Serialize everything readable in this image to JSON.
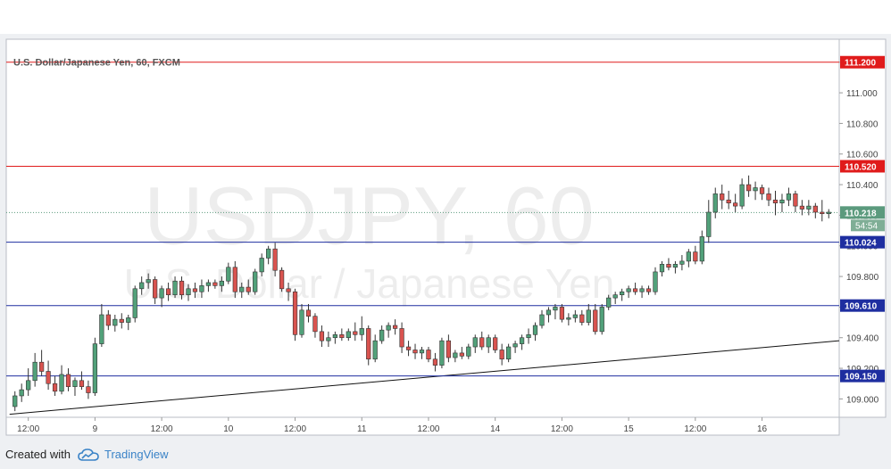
{
  "chart_data": {
    "type": "candlestick",
    "title": "U.S. Dollar/Japanese Yen, 60, FXCM",
    "watermark_symbol": "USDJPY, 60",
    "watermark_name": "U.S. Dollar / Japanese Yen",
    "ylim": [
      108.88,
      111.35
    ],
    "y_ticks": [
      109.0,
      109.2,
      109.4,
      109.6,
      109.8,
      110.0,
      110.2,
      110.4,
      110.6,
      110.8,
      111.0,
      111.2
    ],
    "x_ticks": [
      "12:00",
      "9",
      "12:00",
      "10",
      "12:00",
      "11",
      "12:00",
      "14",
      "12:00",
      "15",
      "12:00",
      "16"
    ],
    "horizontal_levels": [
      {
        "label": "111.200",
        "value": 111.2,
        "color": "#e01b1b",
        "kind": "resistance"
      },
      {
        "label": "110.520",
        "value": 110.52,
        "color": "#e01b1b",
        "kind": "resistance"
      },
      {
        "label": "110.024",
        "value": 110.024,
        "color": "#1e2ea0",
        "kind": "support"
      },
      {
        "label": "109.610",
        "value": 109.61,
        "color": "#1e2ea0",
        "kind": "support"
      },
      {
        "label": "109.150",
        "value": 109.15,
        "color": "#1e2ea0",
        "kind": "support"
      }
    ],
    "current_price": {
      "label": "110.218",
      "value": 110.218,
      "color": "#5b9a7d"
    },
    "countdown": "54:54",
    "trendline": {
      "from": [
        0,
        108.9
      ],
      "to": [
        124,
        109.38
      ],
      "color": "#111111"
    },
    "candles": [
      [
        108.95,
        109.05,
        108.92,
        109.02
      ],
      [
        109.02,
        109.1,
        108.98,
        109.06
      ],
      [
        109.06,
        109.2,
        109.02,
        109.12
      ],
      [
        109.12,
        109.3,
        109.08,
        109.24
      ],
      [
        109.24,
        109.32,
        109.15,
        109.18
      ],
      [
        109.18,
        109.25,
        109.06,
        109.1
      ],
      [
        109.1,
        109.15,
        109.02,
        109.05
      ],
      [
        109.05,
        109.22,
        109.03,
        109.16
      ],
      [
        109.16,
        109.2,
        109.05,
        109.08
      ],
      [
        109.08,
        109.14,
        109.02,
        109.12
      ],
      [
        109.12,
        109.18,
        109.06,
        109.08
      ],
      [
        109.08,
        109.12,
        109.0,
        109.04
      ],
      [
        109.04,
        109.4,
        109.02,
        109.36
      ],
      [
        109.36,
        109.62,
        109.34,
        109.55
      ],
      [
        109.55,
        109.58,
        109.45,
        109.48
      ],
      [
        109.48,
        109.55,
        109.44,
        109.52
      ],
      [
        109.52,
        109.56,
        109.46,
        109.5
      ],
      [
        109.5,
        109.55,
        109.45,
        109.53
      ],
      [
        109.53,
        109.74,
        109.5,
        109.72
      ],
      [
        109.72,
        109.8,
        109.68,
        109.76
      ],
      [
        109.76,
        109.82,
        109.72,
        109.78
      ],
      [
        109.78,
        109.8,
        109.62,
        109.66
      ],
      [
        109.66,
        109.74,
        109.6,
        109.72
      ],
      [
        109.72,
        109.76,
        109.64,
        109.68
      ],
      [
        109.68,
        109.8,
        109.66,
        109.77
      ],
      [
        109.77,
        109.8,
        109.65,
        109.68
      ],
      [
        109.68,
        109.75,
        109.64,
        109.72
      ],
      [
        109.72,
        109.76,
        109.66,
        109.7
      ],
      [
        109.7,
        109.78,
        109.66,
        109.74
      ],
      [
        109.74,
        109.78,
        109.7,
        109.76
      ],
      [
        109.76,
        109.78,
        109.72,
        109.74
      ],
      [
        109.74,
        109.8,
        109.7,
        109.77
      ],
      [
        109.77,
        109.89,
        109.75,
        109.86
      ],
      [
        109.86,
        109.9,
        109.66,
        109.7
      ],
      [
        109.7,
        109.76,
        109.66,
        109.73
      ],
      [
        109.73,
        109.78,
        109.68,
        109.7
      ],
      [
        109.7,
        109.85,
        109.68,
        109.83
      ],
      [
        109.83,
        109.95,
        109.8,
        109.92
      ],
      [
        109.92,
        110.0,
        109.88,
        109.98
      ],
      [
        109.98,
        110.02,
        109.8,
        109.84
      ],
      [
        109.84,
        109.86,
        109.7,
        109.72
      ],
      [
        109.72,
        109.76,
        109.64,
        109.7
      ],
      [
        109.7,
        109.72,
        109.38,
        109.42
      ],
      [
        109.42,
        109.62,
        109.4,
        109.58
      ],
      [
        109.58,
        109.62,
        109.5,
        109.54
      ],
      [
        109.54,
        109.56,
        109.4,
        109.44
      ],
      [
        109.44,
        109.48,
        109.34,
        109.38
      ],
      [
        109.38,
        109.44,
        109.34,
        109.4
      ],
      [
        109.4,
        109.44,
        109.36,
        109.42
      ],
      [
        109.42,
        109.46,
        109.38,
        109.4
      ],
      [
        109.4,
        109.46,
        109.38,
        109.44
      ],
      [
        109.44,
        109.5,
        109.38,
        109.42
      ],
      [
        109.42,
        109.54,
        109.38,
        109.46
      ],
      [
        109.46,
        109.48,
        109.22,
        109.26
      ],
      [
        109.26,
        109.42,
        109.24,
        109.38
      ],
      [
        109.38,
        109.48,
        109.36,
        109.45
      ],
      [
        109.45,
        109.5,
        109.4,
        109.48
      ],
      [
        109.48,
        109.52,
        109.42,
        109.46
      ],
      [
        109.46,
        109.5,
        109.3,
        109.34
      ],
      [
        109.34,
        109.38,
        109.28,
        109.32
      ],
      [
        109.32,
        109.36,
        109.26,
        109.3
      ],
      [
        109.3,
        109.34,
        109.26,
        109.32
      ],
      [
        109.32,
        109.34,
        109.24,
        109.26
      ],
      [
        109.26,
        109.3,
        109.18,
        109.22
      ],
      [
        109.22,
        109.4,
        109.2,
        109.38
      ],
      [
        109.38,
        109.42,
        109.24,
        109.27
      ],
      [
        109.27,
        109.32,
        109.24,
        109.3
      ],
      [
        109.3,
        109.34,
        109.26,
        109.28
      ],
      [
        109.28,
        109.36,
        109.26,
        109.34
      ],
      [
        109.34,
        109.42,
        109.3,
        109.4
      ],
      [
        109.4,
        109.44,
        109.32,
        109.34
      ],
      [
        109.34,
        109.42,
        109.3,
        109.4
      ],
      [
        109.4,
        109.42,
        109.3,
        109.32
      ],
      [
        109.32,
        109.36,
        109.22,
        109.26
      ],
      [
        109.26,
        109.36,
        109.24,
        109.34
      ],
      [
        109.34,
        109.38,
        109.3,
        109.36
      ],
      [
        109.36,
        109.42,
        109.32,
        109.4
      ],
      [
        109.4,
        109.46,
        109.36,
        109.42
      ],
      [
        109.42,
        109.5,
        109.38,
        109.48
      ],
      [
        109.48,
        109.58,
        109.46,
        109.55
      ],
      [
        109.55,
        109.6,
        109.5,
        109.58
      ],
      [
        109.58,
        109.62,
        109.52,
        109.6
      ],
      [
        109.6,
        109.62,
        109.5,
        109.52
      ],
      [
        109.52,
        109.56,
        109.48,
        109.53
      ],
      [
        109.53,
        109.58,
        109.5,
        109.55
      ],
      [
        109.55,
        109.58,
        109.48,
        109.5
      ],
      [
        109.5,
        109.62,
        109.48,
        109.58
      ],
      [
        109.58,
        109.62,
        109.42,
        109.44
      ],
      [
        109.44,
        109.62,
        109.42,
        109.6
      ],
      [
        109.6,
        109.68,
        109.58,
        109.66
      ],
      [
        109.66,
        109.7,
        109.62,
        109.68
      ],
      [
        109.68,
        109.72,
        109.64,
        109.7
      ],
      [
        109.7,
        109.74,
        109.66,
        109.72
      ],
      [
        109.72,
        109.76,
        109.68,
        109.7
      ],
      [
        109.7,
        109.74,
        109.66,
        109.72
      ],
      [
        109.72,
        109.74,
        109.68,
        109.7
      ],
      [
        109.7,
        109.86,
        109.68,
        109.83
      ],
      [
        109.83,
        109.9,
        109.8,
        109.88
      ],
      [
        109.88,
        109.92,
        109.84,
        109.86
      ],
      [
        109.86,
        109.9,
        109.82,
        109.88
      ],
      [
        109.88,
        109.94,
        109.84,
        109.9
      ],
      [
        109.9,
        109.98,
        109.86,
        109.96
      ],
      [
        109.96,
        110.0,
        109.88,
        109.9
      ],
      [
        109.9,
        110.1,
        109.88,
        110.06
      ],
      [
        110.06,
        110.3,
        110.02,
        110.22
      ],
      [
        110.22,
        110.38,
        110.18,
        110.34
      ],
      [
        110.34,
        110.4,
        110.24,
        110.3
      ],
      [
        110.3,
        110.36,
        110.24,
        110.28
      ],
      [
        110.28,
        110.34,
        110.22,
        110.26
      ],
      [
        110.26,
        110.44,
        110.24,
        110.4
      ],
      [
        110.4,
        110.46,
        110.32,
        110.36
      ],
      [
        110.36,
        110.42,
        110.3,
        110.38
      ],
      [
        110.38,
        110.4,
        110.3,
        110.34
      ],
      [
        110.34,
        110.38,
        110.26,
        110.3
      ],
      [
        110.3,
        110.36,
        110.2,
        110.28
      ],
      [
        110.28,
        110.34,
        110.22,
        110.3
      ],
      [
        110.3,
        110.38,
        110.26,
        110.34
      ],
      [
        110.34,
        110.36,
        110.22,
        110.26
      ],
      [
        110.26,
        110.3,
        110.2,
        110.24
      ],
      [
        110.24,
        110.3,
        110.2,
        110.26
      ],
      [
        110.26,
        110.28,
        110.18,
        110.22
      ],
      [
        110.22,
        110.3,
        110.16,
        110.21
      ],
      [
        110.21,
        110.24,
        110.18,
        110.22
      ]
    ]
  },
  "footer": {
    "created_with": "Created with",
    "brand": "TradingView"
  },
  "colors": {
    "bull": "#52a17a",
    "bear": "#d9534f",
    "axis_text": "#444444",
    "grid_border": "#b9bdc4"
  }
}
